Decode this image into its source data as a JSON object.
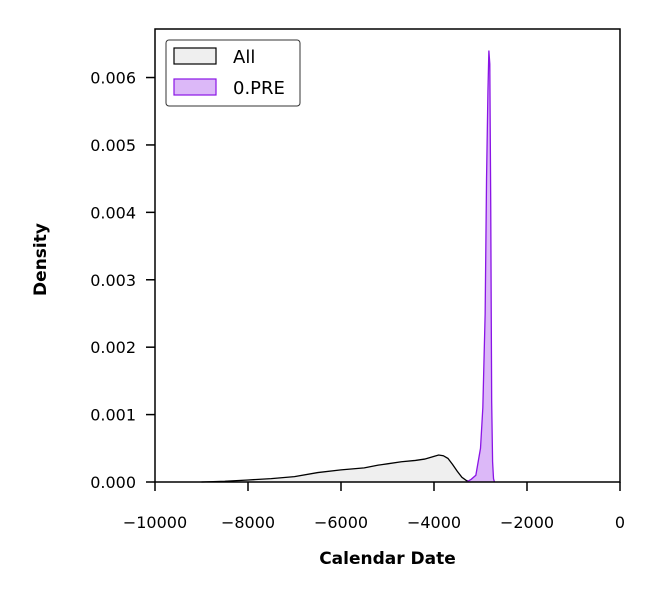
{
  "chart_data": {
    "type": "area",
    "title": "",
    "xlabel": "Calendar Date",
    "ylabel": "Density",
    "xlim": [
      -10000,
      0
    ],
    "ylim": [
      0,
      0.00672
    ],
    "xticks": [
      -10000,
      -8000,
      -6000,
      -4000,
      -2000,
      0
    ],
    "xtick_labels": [
      "−10000",
      "−8000",
      "−6000",
      "−4000",
      "−2000",
      "0"
    ],
    "yticks": [
      0,
      0.001,
      0.002,
      0.003,
      0.004,
      0.005,
      0.006
    ],
    "ytick_labels": [
      "0.000",
      "0.001",
      "0.002",
      "0.003",
      "0.004",
      "0.005",
      "0.006"
    ],
    "grid": false,
    "legend_position": "top-left",
    "series": [
      {
        "name": "All",
        "fill": "#efefef",
        "stroke": "#000000",
        "x": [
          -9000,
          -8500,
          -8000,
          -7500,
          -7000,
          -6500,
          -6000,
          -5500,
          -5200,
          -5000,
          -4700,
          -4400,
          -4200,
          -4000,
          -3900,
          -3800,
          -3700,
          -3600,
          -3500,
          -3400,
          -3300,
          -3200
        ],
        "y": [
          0.0,
          1e-05,
          3e-05,
          5e-05,
          8e-05,
          0.00014,
          0.00018,
          0.00021,
          0.00025,
          0.00027,
          0.0003,
          0.00032,
          0.00034,
          0.00038,
          0.0004,
          0.00039,
          0.00035,
          0.00026,
          0.00016,
          7e-05,
          2e-05,
          0.0
        ]
      },
      {
        "name": "0.PRE",
        "fill": "#dcb8f8",
        "stroke": "#8a14e6",
        "x": [
          -3300,
          -3200,
          -3100,
          -3000,
          -2950,
          -2900,
          -2870,
          -2840,
          -2820,
          -2800,
          -2780,
          -2760,
          -2740,
          -2720,
          -2700
        ],
        "y": [
          0.0,
          4e-05,
          0.0001,
          0.0005,
          0.0011,
          0.0025,
          0.0045,
          0.0058,
          0.0064,
          0.0062,
          0.0041,
          0.0012,
          0.0003,
          5e-05,
          0.0
        ]
      }
    ]
  }
}
